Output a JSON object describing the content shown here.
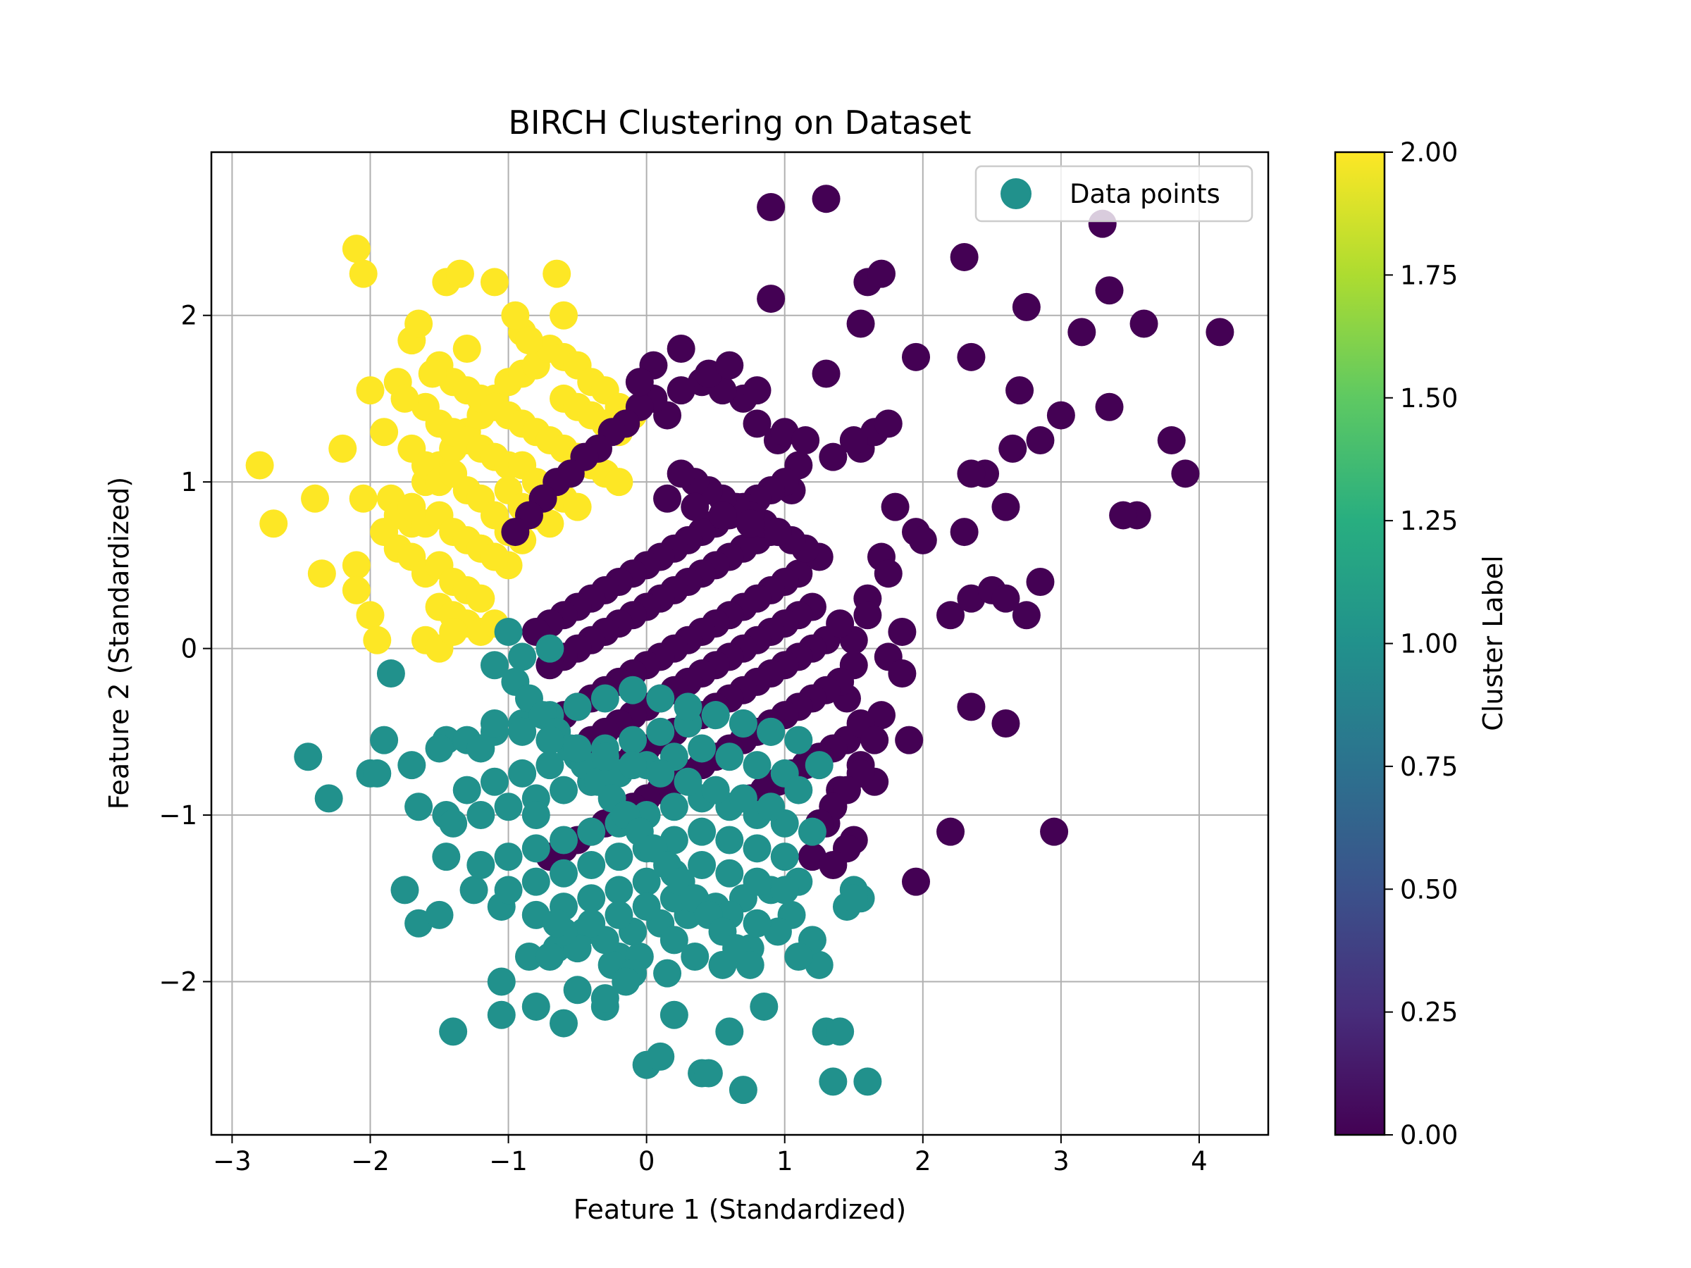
{
  "chart_data": {
    "type": "scatter",
    "title": "BIRCH Clustering on Dataset",
    "xlabel": "Feature 1 (Standardized)",
    "ylabel": "Feature 2 (Standardized)",
    "xlim": [
      -3.15,
      4.5
    ],
    "ylim": [
      -2.92,
      2.98
    ],
    "xticks": [
      -3,
      -2,
      -1,
      0,
      1,
      2,
      3,
      4
    ],
    "xtick_labels": [
      "−3",
      "−2",
      "−1",
      "0",
      "1",
      "2",
      "3",
      "4"
    ],
    "yticks": [
      -2,
      -1,
      0,
      1,
      2
    ],
    "ytick_labels": [
      "−2",
      "−1",
      "0",
      "1",
      "2"
    ],
    "grid": true,
    "legend": {
      "label": "Data points",
      "position": "top-right",
      "color": "#21918c"
    },
    "colorbar": {
      "label": "Cluster Label",
      "min": 0.0,
      "max": 2.0,
      "ticks": [
        "0.00",
        "0.25",
        "0.50",
        "0.75",
        "1.00",
        "1.25",
        "1.50",
        "1.75",
        "2.00"
      ],
      "colormap": "viridis"
    },
    "cluster_colors": {
      "0": "#440154",
      "1": "#21918c",
      "2": "#fde725"
    },
    "series": [
      {
        "cluster": 2,
        "x": [
          -2.1,
          -2.05,
          -1.45,
          -1.35,
          -1.1,
          -0.65,
          -0.6,
          -0.9,
          -1.3,
          -1.7,
          -1.8,
          -1.9,
          -2.2,
          -2.8,
          -2.4,
          -2.7,
          -2.35,
          -2.1,
          -2.0,
          -1.95,
          -2.1,
          -1.85,
          -1.7,
          -1.6,
          -1.5,
          -1.4,
          -1.3,
          -1.2,
          -1.1,
          -1.0,
          -0.9,
          -0.8,
          -0.7,
          -0.6,
          -0.5,
          -0.4,
          -0.3,
          -0.2,
          -0.1,
          -1.5,
          -1.4,
          -1.3,
          -1.2,
          -1.1,
          -1.0,
          -0.9,
          -0.8,
          -1.6,
          -1.5,
          -1.4,
          -1.3,
          -1.2,
          -1.1,
          -1.0,
          -1.7,
          -1.6,
          -1.5,
          -1.4,
          -1.3,
          -1.2,
          -1.8,
          -1.7,
          -1.6,
          -1.5,
          -1.4,
          -1.3,
          -1.2,
          -1.1,
          -1.0,
          -1.9,
          -1.8,
          -1.7,
          -1.6,
          -1.5,
          -1.4,
          -1.3,
          -1.2,
          -1.5,
          -1.4,
          -1.3,
          -1.2,
          -1.1,
          -1.6,
          -1.5,
          -1.4,
          -0.6,
          -0.5,
          -0.4,
          -0.3,
          -0.2,
          -0.7,
          -0.6,
          -0.5,
          -0.4,
          -0.3,
          -0.2,
          -0.9,
          -0.8,
          -0.7,
          -0.6,
          -0.5,
          -1.0,
          -0.9,
          -0.8,
          -0.7,
          -1.1,
          -1.0,
          -0.9,
          -1.2,
          -1.1,
          -2.0,
          -2.05,
          -1.65,
          -1.75,
          -1.55,
          -0.95,
          -0.85
        ],
        "y": [
          2.4,
          2.25,
          2.2,
          2.25,
          2.2,
          2.25,
          2.0,
          1.9,
          1.8,
          1.85,
          1.6,
          1.3,
          1.2,
          1.1,
          0.9,
          0.75,
          0.45,
          0.5,
          0.2,
          0.05,
          0.35,
          0.9,
          0.75,
          1.0,
          1.1,
          1.2,
          1.3,
          1.4,
          1.5,
          1.6,
          1.65,
          1.7,
          1.8,
          1.75,
          1.7,
          1.6,
          1.55,
          1.45,
          1.4,
          1.7,
          1.6,
          1.55,
          1.5,
          1.45,
          1.4,
          1.35,
          1.3,
          1.45,
          1.35,
          1.3,
          1.25,
          1.2,
          1.15,
          1.1,
          1.2,
          1.1,
          1.0,
          1.05,
          0.95,
          0.9,
          0.8,
          0.85,
          0.75,
          0.8,
          0.7,
          0.65,
          0.6,
          0.55,
          0.5,
          0.7,
          0.6,
          0.55,
          0.45,
          0.5,
          0.4,
          0.35,
          0.3,
          0.25,
          0.2,
          0.15,
          0.1,
          0.15,
          0.05,
          0.0,
          0.1,
          1.5,
          1.45,
          1.4,
          1.35,
          1.3,
          1.25,
          1.2,
          1.15,
          1.1,
          1.05,
          1.0,
          1.1,
          1.0,
          0.95,
          0.9,
          0.85,
          0.95,
          0.85,
          0.8,
          0.75,
          0.8,
          0.7,
          0.65,
          0.6,
          0.55,
          1.55,
          0.9,
          1.95,
          1.5,
          1.65,
          2.0,
          1.85
        ]
      },
      {
        "cluster": 0,
        "x": [
          0.9,
          1.3,
          2.3,
          3.3,
          1.6,
          1.7,
          0.9,
          2.35,
          3.35,
          4.15,
          3.6,
          3.15,
          2.75,
          1.55,
          1.95,
          1.3,
          2.7,
          3.0,
          3.35,
          3.8,
          3.9,
          3.55,
          2.85,
          2.65,
          2.45,
          2.35,
          2.6,
          3.45,
          2.2,
          2.35,
          2.5,
          2.6,
          2.75,
          2.85,
          2.3,
          2.35,
          2.6,
          2.95,
          1.95,
          2.2,
          1.55,
          1.65,
          1.75,
          1.5,
          1.35,
          1.8,
          1.95,
          2.0,
          1.7,
          1.75,
          1.6,
          1.85,
          1.5,
          1.45,
          1.7,
          1.9,
          1.55,
          1.65,
          1.4,
          1.35,
          1.5,
          1.2,
          1.3,
          1.05,
          1.1,
          0.95,
          0.8,
          0.7,
          0.55,
          0.4,
          0.25,
          0.15,
          0.05,
          -0.05,
          -0.15,
          -0.25,
          -0.35,
          -0.45,
          -0.55,
          -0.65,
          -0.75,
          -0.85,
          -0.95,
          1.0,
          0.9,
          0.8,
          0.7,
          0.6,
          0.5,
          0.4,
          0.3,
          0.2,
          0.1,
          0.0,
          -0.1,
          -0.2,
          -0.3,
          -0.4,
          -0.5,
          -0.6,
          -0.7,
          -0.8,
          0.9,
          0.8,
          0.7,
          0.6,
          0.5,
          0.4,
          0.3,
          0.2,
          0.1,
          0.0,
          -0.1,
          -0.2,
          -0.3,
          -0.4,
          -0.5,
          -0.6,
          -0.7,
          1.1,
          1.0,
          0.9,
          0.8,
          0.7,
          0.6,
          0.5,
          0.4,
          0.3,
          0.2,
          0.1,
          0.0,
          -0.1,
          -0.2,
          -0.3,
          -0.4,
          -0.5,
          -0.6,
          1.2,
          1.1,
          1.0,
          0.9,
          0.8,
          0.7,
          0.6,
          0.5,
          0.4,
          0.3,
          0.2,
          0.1,
          0.0,
          -0.1,
          -0.2,
          -0.3,
          -0.4,
          -0.5,
          1.3,
          1.2,
          1.1,
          1.0,
          0.9,
          0.8,
          0.7,
          0.6,
          0.5,
          0.4,
          0.3,
          0.2,
          0.1,
          0.0,
          -0.1,
          -0.2,
          -0.3,
          -0.4,
          1.4,
          1.3,
          1.2,
          1.1,
          1.0,
          0.9,
          0.8,
          0.7,
          0.6,
          0.5,
          0.4,
          0.3,
          0.2,
          0.1,
          0.0,
          -0.1,
          -0.2,
          -0.3,
          -0.4,
          -0.5,
          -0.6,
          -0.7,
          1.25,
          1.15,
          1.05,
          0.95,
          0.85,
          0.75,
          0.65,
          0.55,
          0.45,
          0.35,
          0.25,
          1.45,
          1.35,
          1.25,
          1.15,
          1.05,
          0.95,
          0.85,
          0.75,
          1.55,
          1.45,
          1.35,
          1.25,
          1.45,
          1.35,
          1.55,
          1.65,
          1.5,
          1.4,
          1.6,
          1.75,
          1.85,
          0.05,
          -0.05,
          0.25,
          0.45,
          0.6,
          0.8,
          1.0,
          1.15,
          0.15,
          0.35,
          0.55,
          0.75,
          0.95
        ],
        "y": [
          2.65,
          2.7,
          2.35,
          2.55,
          2.2,
          2.25,
          2.1,
          1.75,
          2.15,
          1.9,
          1.95,
          1.9,
          2.05,
          1.95,
          1.75,
          1.65,
          1.55,
          1.4,
          1.45,
          1.25,
          1.05,
          0.8,
          1.25,
          1.2,
          1.05,
          1.05,
          0.85,
          0.8,
          0.2,
          0.3,
          0.35,
          0.3,
          0.2,
          0.4,
          0.7,
          -0.35,
          -0.45,
          -1.1,
          -1.4,
          -1.1,
          1.2,
          1.3,
          1.35,
          1.25,
          1.15,
          0.85,
          0.7,
          0.65,
          0.55,
          0.45,
          0.3,
          0.1,
          -0.1,
          -0.3,
          -0.4,
          -0.55,
          -0.7,
          -0.8,
          -0.85,
          -0.95,
          -1.15,
          -1.25,
          -1.05,
          0.95,
          1.1,
          1.25,
          1.35,
          1.5,
          1.55,
          1.6,
          1.55,
          1.4,
          1.5,
          1.45,
          1.35,
          1.3,
          1.2,
          1.15,
          1.05,
          1.0,
          0.9,
          0.8,
          0.7,
          1.0,
          0.95,
          0.9,
          0.85,
          0.8,
          0.75,
          0.7,
          0.65,
          0.6,
          0.55,
          0.5,
          0.45,
          0.4,
          0.35,
          0.3,
          0.25,
          0.2,
          0.15,
          0.1,
          0.7,
          0.65,
          0.6,
          0.55,
          0.5,
          0.45,
          0.4,
          0.35,
          0.3,
          0.25,
          0.2,
          0.15,
          0.1,
          0.05,
          0.0,
          -0.05,
          -0.1,
          0.45,
          0.4,
          0.35,
          0.3,
          0.25,
          0.2,
          0.15,
          0.1,
          0.05,
          0.0,
          -0.05,
          -0.1,
          -0.15,
          -0.2,
          -0.25,
          -0.3,
          -0.35,
          -0.4,
          0.25,
          0.2,
          0.15,
          0.1,
          0.05,
          0.0,
          -0.05,
          -0.1,
          -0.15,
          -0.2,
          -0.25,
          -0.3,
          -0.35,
          -0.4,
          -0.45,
          -0.5,
          -0.55,
          -0.6,
          0.05,
          0.0,
          -0.05,
          -0.1,
          -0.15,
          -0.2,
          -0.25,
          -0.3,
          -0.35,
          -0.4,
          -0.45,
          -0.5,
          -0.55,
          -0.6,
          -0.65,
          -0.7,
          -0.75,
          -0.8,
          -0.2,
          -0.25,
          -0.3,
          -0.35,
          -0.4,
          -0.45,
          -0.5,
          -0.55,
          -0.6,
          -0.65,
          -0.7,
          -0.75,
          -0.8,
          -0.85,
          -0.9,
          -0.95,
          -1.0,
          -1.05,
          -1.1,
          -1.15,
          -1.2,
          -1.25,
          0.55,
          0.6,
          0.65,
          0.7,
          0.75,
          0.8,
          0.85,
          0.9,
          0.95,
          1.0,
          1.05,
          -0.55,
          -0.6,
          -0.65,
          -0.7,
          -0.75,
          -0.8,
          -0.85,
          -0.9,
          -0.75,
          -0.85,
          -0.95,
          -1.05,
          -1.2,
          -1.3,
          -0.45,
          -0.55,
          0.05,
          0.15,
          0.2,
          -0.05,
          -0.15,
          1.7,
          1.6,
          1.8,
          1.65,
          1.7,
          1.55,
          1.3,
          1.25,
          0.9,
          0.85,
          0.8,
          0.75,
          0.7
        ]
      },
      {
        "cluster": 1,
        "x": [
          -2.45,
          -2.3,
          -2.0,
          -1.9,
          -1.7,
          -1.75,
          -1.65,
          -1.5,
          -1.45,
          -1.4,
          -1.05,
          -1.05,
          -1.45,
          -0.8,
          -0.6,
          -0.5,
          -0.3,
          -0.2,
          0.0,
          0.1,
          0.2,
          0.4,
          0.45,
          0.6,
          0.7,
          0.85,
          1.3,
          1.35,
          1.4,
          1.6,
          1.45,
          1.55,
          1.25,
          1.2,
          1.05,
          1.1,
          0.95,
          0.75,
          0.55,
          0.35,
          0.15,
          -0.05,
          -0.25,
          -0.45,
          -0.65,
          -0.85,
          -1.05,
          -1.25,
          -1.45,
          -1.65,
          -1.85,
          -0.7,
          -0.5,
          -0.3,
          -0.1,
          0.1,
          0.3,
          0.5,
          0.7,
          0.9,
          1.1,
          -1.3,
          -1.1,
          -0.9,
          -0.7,
          -0.5,
          -0.3,
          -0.1,
          0.1,
          0.3,
          0.5,
          0.7,
          0.9,
          -1.4,
          -1.2,
          -1.0,
          -0.8,
          -0.6,
          -0.4,
          -0.2,
          0.0,
          0.2,
          0.4,
          0.6,
          0.8,
          1.0,
          -1.5,
          -1.3,
          -1.1,
          -0.9,
          -0.7,
          -0.5,
          -0.3,
          -0.1,
          0.1,
          0.3,
          0.5,
          0.7,
          0.9,
          1.1,
          -1.2,
          -1.0,
          -0.8,
          -0.6,
          -0.4,
          -0.2,
          0.0,
          0.2,
          0.4,
          0.6,
          0.8,
          1.0,
          1.2,
          -1.0,
          -0.8,
          -0.6,
          -0.4,
          -0.2,
          0.0,
          0.2,
          0.4,
          0.6,
          0.8,
          1.0,
          -0.8,
          -0.6,
          -0.4,
          -0.2,
          0.0,
          0.2,
          0.4,
          0.6,
          0.8,
          1.0,
          -0.6,
          -0.4,
          -0.2,
          0.0,
          0.2,
          0.4,
          0.6,
          0.8,
          -0.9,
          -0.7,
          -1.0,
          -1.1,
          -0.95,
          -0.85,
          -0.75,
          -0.65,
          -0.55,
          -0.45,
          -0.35,
          -0.25,
          -0.15,
          -0.05,
          0.05,
          0.15,
          0.25,
          0.35,
          0.45,
          0.55,
          0.65,
          0.75,
          -1.1,
          -0.9,
          -0.7,
          -0.5,
          -0.3,
          -0.1,
          0.1,
          0.3,
          0.5,
          0.7,
          0.9,
          1.1,
          1.25,
          1.5,
          1.5,
          -1.95,
          -0.3,
          -0.1,
          -0.65,
          -0.15,
          0.2,
          -0.8,
          -1.2
        ],
        "y": [
          -0.65,
          -0.9,
          -0.75,
          -0.55,
          -0.7,
          -1.45,
          -1.65,
          -1.6,
          -1.25,
          -2.3,
          -2.0,
          -2.2,
          -0.55,
          -2.15,
          -2.25,
          -2.05,
          -2.15,
          -1.85,
          -2.5,
          -2.45,
          -2.2,
          -2.55,
          -2.55,
          -2.3,
          -2.65,
          -2.15,
          -2.3,
          -2.6,
          -2.3,
          -2.6,
          -1.55,
          -1.5,
          -1.9,
          -1.75,
          -1.6,
          -1.85,
          -1.7,
          -1.8,
          -1.9,
          -1.85,
          -1.95,
          -1.85,
          -1.9,
          -1.7,
          -1.8,
          -1.85,
          -1.55,
          -1.45,
          -1.0,
          -0.95,
          -0.15,
          -1.85,
          -1.8,
          -1.75,
          -1.7,
          -1.65,
          -1.6,
          -1.55,
          -1.5,
          -1.45,
          -1.4,
          -0.85,
          -0.8,
          -0.75,
          -0.7,
          -0.65,
          -0.6,
          -0.55,
          -0.5,
          -0.45,
          -0.4,
          -0.45,
          -0.5,
          -1.05,
          -1.0,
          -0.95,
          -0.9,
          -0.85,
          -0.8,
          -0.75,
          -0.7,
          -0.65,
          -0.6,
          -0.65,
          -0.7,
          -0.75,
          -0.6,
          -0.55,
          -0.5,
          -0.45,
          -0.4,
          -0.35,
          -0.3,
          -0.25,
          -0.3,
          -0.35,
          -0.4,
          -0.45,
          -0.5,
          -0.55,
          -1.3,
          -1.25,
          -1.2,
          -1.15,
          -1.1,
          -1.05,
          -1.0,
          -0.95,
          -0.9,
          -0.95,
          -1.0,
          -1.05,
          -1.1,
          -1.45,
          -1.4,
          -1.35,
          -1.3,
          -1.25,
          -1.2,
          -1.15,
          -1.1,
          -1.15,
          -1.2,
          -1.25,
          -1.6,
          -1.55,
          -1.5,
          -1.45,
          -1.4,
          -1.35,
          -1.3,
          -1.35,
          -1.4,
          -1.45,
          -1.7,
          -1.65,
          -1.6,
          -1.55,
          -1.5,
          -1.55,
          -1.6,
          -1.65,
          -0.05,
          0.0,
          0.1,
          -0.1,
          -0.2,
          -0.3,
          -0.4,
          -0.5,
          -0.6,
          -0.7,
          -0.8,
          -0.9,
          -1.0,
          -1.1,
          -1.2,
          -1.3,
          -1.4,
          -1.5,
          -1.6,
          -1.7,
          -1.8,
          -1.9,
          -0.45,
          -0.5,
          -0.55,
          -0.6,
          -0.65,
          -0.7,
          -0.75,
          -0.8,
          -0.85,
          -0.9,
          -0.95,
          -0.85,
          -0.7,
          -1.45,
          -1.5,
          -0.75,
          -2.1,
          -1.95,
          -1.65,
          -2.0,
          -1.75,
          -1.0,
          -0.6
        ]
      }
    ]
  }
}
